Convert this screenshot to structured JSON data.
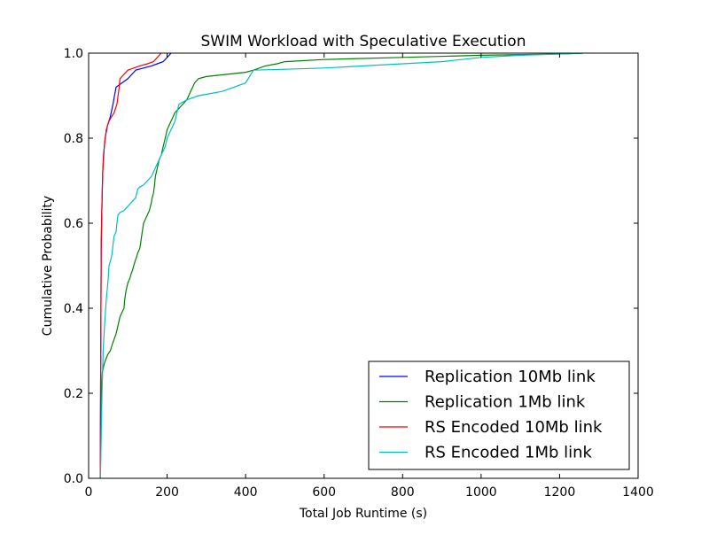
{
  "chart_data": {
    "type": "line",
    "title": "SWIM Workload with Speculative Execution",
    "xlabel": "Total Job Runtime (s)",
    "ylabel": "Cumulative Probability",
    "xlim": [
      0,
      1400
    ],
    "ylim": [
      0.0,
      1.0
    ],
    "xticks": [
      0,
      200,
      400,
      600,
      800,
      1000,
      1200,
      1400
    ],
    "yticks": [
      0.0,
      0.2,
      0.4,
      0.6,
      0.8,
      1.0
    ],
    "ytick_labels": [
      "0.0",
      "0.2",
      "0.4",
      "0.6",
      "0.8",
      "1.0"
    ],
    "grid": false,
    "legend_position": "lower-right",
    "series": [
      {
        "name": "Replication 10Mb link",
        "color": "#0000ff",
        "x": [
          30,
          30,
          31,
          32,
          34,
          36,
          38,
          42,
          48,
          55,
          62,
          66,
          70,
          85,
          100,
          110,
          120,
          140,
          160,
          175,
          190,
          200,
          210
        ],
        "y": [
          0.0,
          0.1,
          0.3,
          0.55,
          0.65,
          0.72,
          0.76,
          0.8,
          0.83,
          0.85,
          0.88,
          0.9,
          0.92,
          0.93,
          0.94,
          0.95,
          0.96,
          0.965,
          0.97,
          0.975,
          0.98,
          0.99,
          1.0
        ]
      },
      {
        "name": "Replication 1Mb link",
        "color": "#008000",
        "x": [
          30,
          32,
          35,
          40,
          48,
          55,
          62,
          70,
          75,
          80,
          85,
          90,
          92,
          95,
          100,
          105,
          108,
          112,
          115,
          118,
          122,
          125,
          130,
          132,
          135,
          140,
          150,
          155,
          160,
          162,
          165,
          168,
          170,
          175,
          180,
          185,
          190,
          195,
          200,
          205,
          210,
          215,
          220,
          230,
          240,
          250,
          255,
          260,
          265,
          270,
          280,
          300,
          350,
          400,
          420,
          450,
          480,
          500,
          600,
          800,
          1000,
          1200,
          1260
        ],
        "y": [
          0.0,
          0.2,
          0.25,
          0.27,
          0.29,
          0.3,
          0.32,
          0.34,
          0.36,
          0.38,
          0.39,
          0.4,
          0.42,
          0.44,
          0.46,
          0.47,
          0.48,
          0.49,
          0.5,
          0.51,
          0.52,
          0.53,
          0.54,
          0.55,
          0.57,
          0.6,
          0.62,
          0.63,
          0.65,
          0.66,
          0.67,
          0.69,
          0.71,
          0.73,
          0.75,
          0.76,
          0.78,
          0.8,
          0.82,
          0.83,
          0.84,
          0.85,
          0.86,
          0.87,
          0.88,
          0.89,
          0.9,
          0.91,
          0.92,
          0.93,
          0.94,
          0.945,
          0.95,
          0.955,
          0.96,
          0.97,
          0.975,
          0.98,
          0.985,
          0.99,
          0.995,
          0.998,
          1.0
        ]
      },
      {
        "name": "RS Encoded 10Mb link",
        "color": "#ff0000",
        "x": [
          30,
          30,
          31,
          32,
          34,
          36,
          40,
          45,
          52,
          58,
          65,
          72,
          78,
          80,
          90,
          100,
          115,
          130,
          150,
          165,
          175,
          185
        ],
        "y": [
          0.0,
          0.1,
          0.3,
          0.55,
          0.65,
          0.72,
          0.78,
          0.82,
          0.84,
          0.85,
          0.86,
          0.88,
          0.92,
          0.94,
          0.95,
          0.96,
          0.965,
          0.97,
          0.975,
          0.98,
          0.99,
          1.0
        ]
      },
      {
        "name": "RS Encoded 1Mb link",
        "color": "#00bfbf",
        "x": [
          30,
          32,
          34,
          37,
          40,
          42,
          45,
          48,
          50,
          52,
          55,
          58,
          60,
          62,
          65,
          70,
          72,
          75,
          80,
          90,
          100,
          110,
          120,
          125,
          130,
          140,
          145,
          150,
          160,
          165,
          170,
          175,
          180,
          185,
          190,
          195,
          200,
          210,
          220,
          225,
          230,
          250,
          280,
          310,
          340,
          370,
          400,
          420,
          500,
          600,
          700,
          800,
          900,
          1000,
          1100,
          1200,
          1260
        ],
        "y": [
          0.0,
          0.1,
          0.2,
          0.3,
          0.35,
          0.38,
          0.42,
          0.45,
          0.47,
          0.5,
          0.51,
          0.52,
          0.53,
          0.55,
          0.57,
          0.58,
          0.6,
          0.62,
          0.625,
          0.63,
          0.64,
          0.65,
          0.66,
          0.68,
          0.685,
          0.69,
          0.695,
          0.7,
          0.71,
          0.72,
          0.73,
          0.74,
          0.75,
          0.76,
          0.77,
          0.78,
          0.8,
          0.82,
          0.84,
          0.86,
          0.88,
          0.89,
          0.9,
          0.905,
          0.91,
          0.92,
          0.93,
          0.96,
          0.962,
          0.965,
          0.97,
          0.975,
          0.98,
          0.99,
          0.995,
          0.998,
          1.0
        ]
      }
    ]
  }
}
